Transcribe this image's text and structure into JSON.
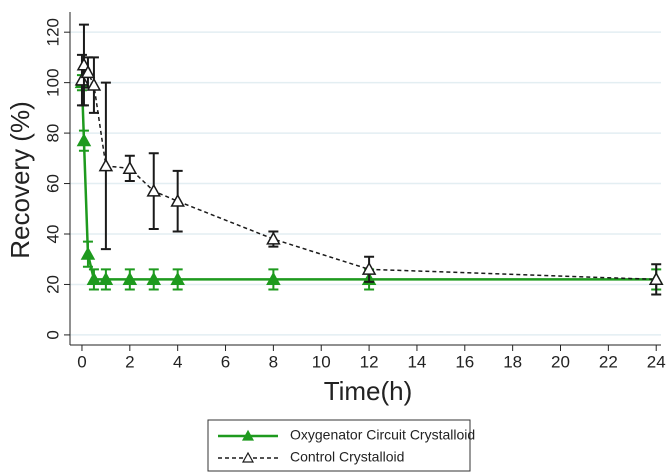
{
  "chart_data": {
    "type": "line",
    "y_label": "Recovery (%)",
    "x_label": "Time(h)",
    "xlim": [
      -0.5,
      24.2
    ],
    "xticks": [
      0,
      2,
      4,
      6,
      8,
      10,
      12,
      14,
      16,
      18,
      20,
      22,
      24
    ],
    "ylim": [
      -4,
      128
    ],
    "yticks": [
      0,
      20,
      40,
      60,
      80,
      100,
      120
    ],
    "grid": true,
    "legend": "bottom",
    "series": [
      {
        "name": "Oxygenator Circuit Crystalloid",
        "color": "#1e9a1e",
        "marker": "filled-triangle",
        "dash": false,
        "x": [
          0,
          0.083,
          0.25,
          0.5,
          1,
          2,
          3,
          4,
          8,
          12,
          24
        ],
        "values": [
          100,
          77,
          32,
          22,
          22,
          22,
          22,
          22,
          22,
          22,
          22
        ],
        "errors": [
          3,
          4,
          5,
          4,
          4,
          4,
          4,
          4,
          4,
          4,
          4
        ]
      },
      {
        "name": "Control Crystalloid",
        "color": "#1a1a1a",
        "marker": "open-triangle",
        "dash": true,
        "x": [
          0,
          0.083,
          0.25,
          0.5,
          1,
          2,
          3,
          4,
          8,
          12,
          24
        ],
        "values": [
          101,
          107,
          104,
          99,
          67,
          66,
          57,
          53,
          38,
          26,
          22
        ],
        "errors": [
          10,
          16,
          6,
          11,
          33,
          5,
          15,
          12,
          3,
          5,
          6
        ]
      }
    ]
  }
}
